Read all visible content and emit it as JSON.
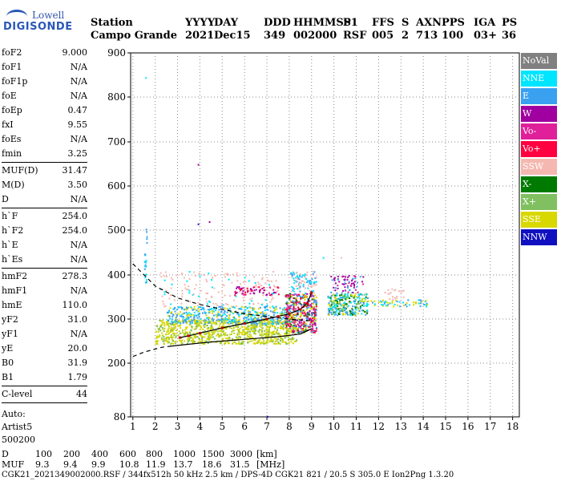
{
  "logo": {
    "line1": "Lowell",
    "line2": "DIGISONDE"
  },
  "header": {
    "row1": [
      "Station",
      "YYYY",
      "DAY",
      "DDD",
      "HHMMSS",
      "P1",
      "FFS",
      "S",
      "AXN",
      "PPS",
      "IGA",
      "PS"
    ],
    "row2": [
      "Campo Grande",
      "2021",
      "Dec15",
      "349",
      "002000",
      "RSF",
      "005",
      "2",
      "713",
      "100",
      "03+",
      "36"
    ]
  },
  "params": [
    {
      "label": "foF2",
      "value": "9.000"
    },
    {
      "label": "foF1",
      "value": "N/A"
    },
    {
      "label": "foF1p",
      "value": "N/A"
    },
    {
      "label": "foE",
      "value": "N/A"
    },
    {
      "label": "foEp",
      "value": "0.47"
    },
    {
      "label": "fxI",
      "value": "9.55"
    },
    {
      "label": "foEs",
      "value": "N/A"
    },
    {
      "label": "fmin",
      "value": "3.25"
    },
    {
      "sep": true
    },
    {
      "label": "MUF(D)",
      "value": "31.47"
    },
    {
      "label": "M(D)",
      "value": "3.50"
    },
    {
      "label": "D",
      "value": "N/A"
    },
    {
      "sep": true
    },
    {
      "label": "h`F",
      "value": "254.0"
    },
    {
      "label": "h`F2",
      "value": "254.0"
    },
    {
      "label": "h`E",
      "value": "N/A"
    },
    {
      "label": "h`Es",
      "value": "N/A"
    },
    {
      "sep": true
    },
    {
      "label": "hmF2",
      "value": "278.3"
    },
    {
      "label": "hmF1",
      "value": "N/A"
    },
    {
      "label": "hmE",
      "value": "110.0"
    },
    {
      "label": "yF2",
      "value": "31.0"
    },
    {
      "label": "yF1",
      "value": "N/A"
    },
    {
      "label": "yE",
      "value": "20.0"
    },
    {
      "label": "B0",
      "value": "31.9"
    },
    {
      "label": "B1",
      "value": "1.79"
    },
    {
      "sep": true
    },
    {
      "label": "C-level",
      "value": "44"
    },
    {
      "sep": true
    }
  ],
  "auto": [
    "Auto:",
    "Artist5",
    "500200"
  ],
  "legend": [
    {
      "label": "NoVal",
      "color": "#808080",
      "text": "#ffffff"
    },
    {
      "label": "NNE",
      "color": "#00e5ff",
      "text": "#ffffff"
    },
    {
      "label": "E",
      "color": "#3aa0f0",
      "text": "#ffffff"
    },
    {
      "label": "W",
      "color": "#a000a0",
      "text": "#ffffff"
    },
    {
      "label": "Vo-",
      "color": "#e0209a",
      "text": "#ffffff"
    },
    {
      "label": "Vo+",
      "color": "#ff0040",
      "text": "#ffffff"
    },
    {
      "label": "SSW",
      "color": "#f4b8b0",
      "text": "#ffffff"
    },
    {
      "label": "X-",
      "color": "#007a00",
      "text": "#ffffff"
    },
    {
      "label": "X+",
      "color": "#80c060",
      "text": "#ffffff"
    },
    {
      "label": "SSE",
      "color": "#d8d800",
      "text": "#ffffff"
    },
    {
      "label": "NNW",
      "color": "#1010c0",
      "text": "#ffffff"
    }
  ],
  "chart_data": {
    "type": "scatter",
    "xlim": [
      0.9,
      18.3
    ],
    "ylim": [
      80,
      900
    ],
    "x_ticks": [
      1,
      2,
      3,
      4,
      5,
      6,
      7,
      8,
      9,
      10,
      11,
      12,
      13,
      14,
      15,
      16,
      17,
      18
    ],
    "y_ticks": [
      80,
      200,
      300,
      400,
      500,
      600,
      700,
      800,
      900
    ],
    "trace_virtual_height": {
      "x": [
        3.1,
        3.5,
        4,
        5,
        6,
        7,
        7.5,
        8,
        8.5,
        8.8,
        9.0
      ],
      "y": [
        258,
        262,
        268,
        280,
        290,
        300,
        306,
        312,
        322,
        335,
        360
      ]
    },
    "trace_true_height": {
      "x": [
        2.6,
        3.5,
        4.5,
        5.5,
        6.5,
        7.5,
        8.5,
        9.0
      ],
      "y": [
        238,
        243,
        248,
        252,
        256,
        260,
        266,
        278
      ]
    },
    "trace_dashed_upper": {
      "x": [
        1.0,
        2,
        3,
        4,
        5,
        6,
        7,
        8,
        9
      ],
      "y": [
        425,
        375,
        348,
        333,
        322,
        312,
        306,
        300,
        296
      ]
    },
    "trace_dashed_lower": {
      "x": [
        1.0,
        1.5,
        2,
        2.3,
        2.6
      ],
      "y": [
        215,
        225,
        232,
        236,
        238
      ]
    }
  },
  "footer": {
    "line1": [
      "D",
      "100",
      "200",
      "400",
      "600",
      "800",
      "1000",
      "1500",
      "3000",
      "[km]"
    ],
    "line2": [
      "MUF",
      "9.3",
      "9.4",
      "9.9",
      "10.8",
      "11.9",
      "13.7",
      "18.6",
      "31.5",
      "[MHz]"
    ],
    "line3": "CGK21_2021349002000.RSF / 344fx512h 50 kHz 2.5 km / DPS-4D CGK21 821 / 20.5 S 305.0 E Ion2Png 1.3.20"
  }
}
